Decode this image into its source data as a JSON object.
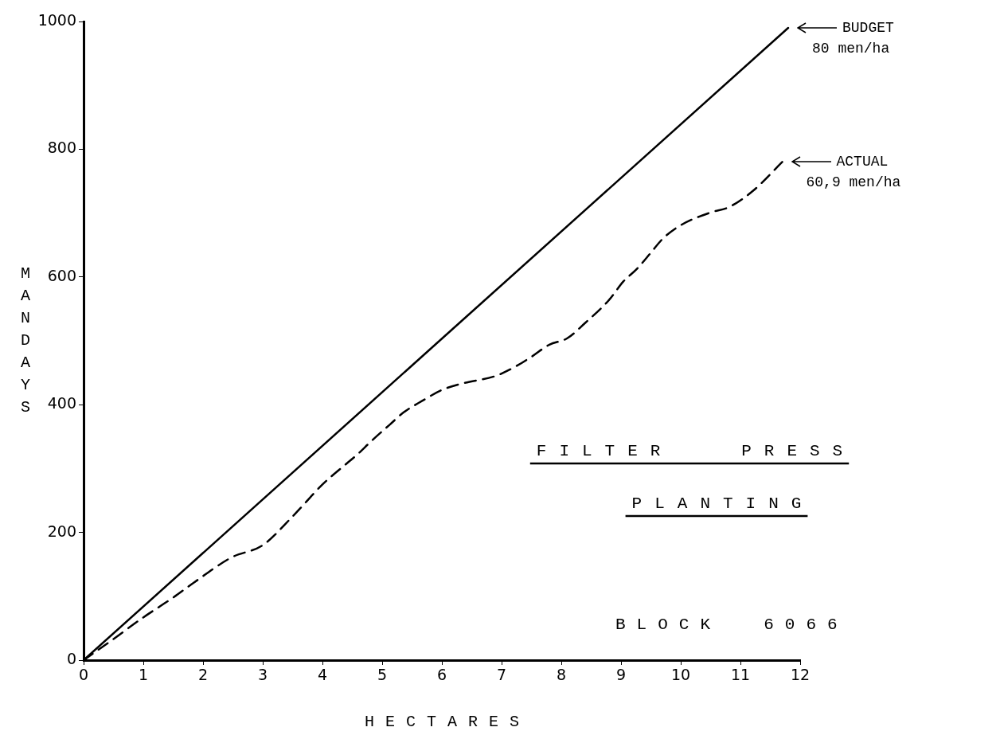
{
  "chart_data": {
    "type": "line",
    "title": "FILTER PRESS PLANTING",
    "subtitle": "BLOCK 6066",
    "xlabel": "HECTARES",
    "ylabel": "MANDAYS",
    "xlim": [
      0,
      12
    ],
    "xticks": [
      0,
      1,
      2,
      3,
      4,
      5,
      6,
      7,
      8,
      9,
      10,
      11,
      12
    ],
    "ylim": [
      0,
      1000
    ],
    "yticks": [
      0,
      200,
      400,
      600,
      800,
      1000
    ],
    "grid": false,
    "legend": false,
    "marker": "none",
    "series": [
      {
        "color": "#000000",
        "line_style": "solid",
        "x": [
          0,
          11.8
        ],
        "values": [
          0,
          990
        ]
      },
      {
        "color": "#000000",
        "line_style": "dashed",
        "x": [
          0,
          0.5,
          0.97,
          1.5,
          1.84,
          2.48,
          3.0,
          3.5,
          4.0,
          4.33,
          4.56,
          4.83,
          5.13,
          5.36,
          5.67,
          6.0,
          6.33,
          6.9,
          7.2,
          7.5,
          7.8,
          8.1,
          8.4,
          8.8,
          9.04,
          9.27,
          9.5,
          9.7,
          10.0,
          10.5,
          10.8,
          11.2,
          11.7
        ],
        "values": [
          0,
          33,
          65,
          98,
          121,
          161,
          180,
          225,
          275,
          302,
          320,
          344,
          369,
          388,
          406,
          423,
          433,
          445,
          458,
          475,
          494,
          504,
          528,
          564,
          593,
          613,
          638,
          660,
          681,
          701,
          709,
          734,
          780
        ]
      }
    ],
    "annotations": [
      "BUDGET",
      "80 men/ha",
      "ACTUAL",
      "60,9 men/ha"
    ]
  }
}
